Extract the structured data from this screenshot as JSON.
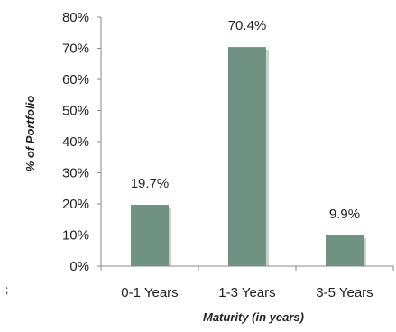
{
  "chart_data": {
    "type": "bar",
    "categories": [
      "0-1 Years",
      "1-3 Years",
      "3-5 Years"
    ],
    "values": [
      19.7,
      70.4,
      9.9
    ],
    "data_labels": [
      "19.7%",
      "70.4%",
      "9.9%"
    ],
    "title": "",
    "xlabel": "Maturity (in years)",
    "ylabel": "% of Portfolio",
    "ylim": [
      0,
      80
    ],
    "yticks": [
      0,
      10,
      20,
      30,
      40,
      50,
      60,
      70,
      80
    ],
    "ytick_labels": [
      "0%",
      "10%",
      "20%",
      "30%",
      "40%",
      "50%",
      "60%",
      "70%",
      "80%"
    ],
    "grid": false,
    "legend": "none",
    "colors": {
      "bar": "#6f9282",
      "bar_shadow": "#b9c7c0",
      "axis": "#888888",
      "text": "#222222"
    }
  },
  "stray_mark": ";"
}
